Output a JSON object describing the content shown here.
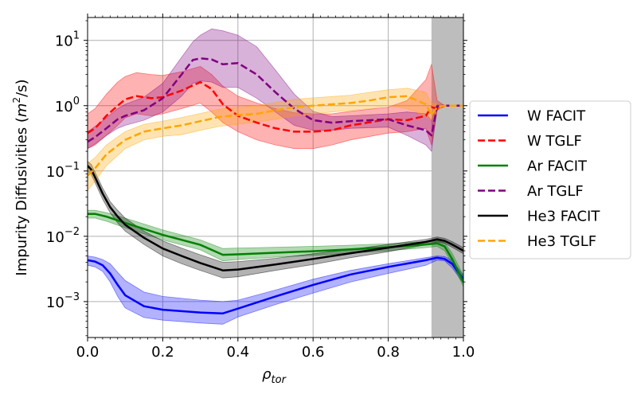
{
  "chart_data": {
    "type": "line",
    "title": "",
    "xlabel_base": "ρ",
    "xlabel_sub": "tor",
    "ylabel_text": "Impurity Diffusivities (",
    "ylabel_unit_m": "m",
    "ylabel_unit_exp": "2",
    "ylabel_unit_rest": "/s)",
    "xlim": [
      0.0,
      1.0
    ],
    "ylim_log10": [
      -3.55,
      1.35
    ],
    "x_ticks": [
      {
        "value": 0.0,
        "label": "0.0"
      },
      {
        "value": 0.2,
        "label": "0.2"
      },
      {
        "value": 0.4,
        "label": "0.4"
      },
      {
        "value": 0.6,
        "label": "0.6"
      },
      {
        "value": 0.8,
        "label": "0.8"
      },
      {
        "value": 1.0,
        "label": "1.0"
      }
    ],
    "y_ticks": [
      {
        "value": 0.001,
        "base": "10",
        "exp": "−3"
      },
      {
        "value": 0.01,
        "base": "10",
        "exp": "−2"
      },
      {
        "value": 0.1,
        "base": "10",
        "exp": "−1"
      },
      {
        "value": 1,
        "base": "10",
        "exp": "0"
      },
      {
        "value": 10,
        "base": "10",
        "exp": "1"
      }
    ],
    "grid": true,
    "shaded_region": {
      "x_start": 0.915,
      "x_end": 1.0,
      "color": "#bdbdbd"
    },
    "legend_position": "outside-right",
    "series": [
      {
        "name": "W FACIT",
        "color": "#0000ff",
        "dash": "solid",
        "band_opacity": 0.3,
        "x": [
          0.0,
          0.02,
          0.04,
          0.06,
          0.08,
          0.1,
          0.15,
          0.2,
          0.3,
          0.36,
          0.4,
          0.5,
          0.6,
          0.7,
          0.8,
          0.9,
          0.93,
          0.95,
          0.97,
          1.0
        ],
        "y": [
          0.0043,
          0.0041,
          0.0036,
          0.0027,
          0.0018,
          0.00125,
          0.00085,
          0.00075,
          0.00068,
          0.00066,
          0.00078,
          0.0012,
          0.0018,
          0.0026,
          0.0034,
          0.0043,
          0.0047,
          0.0045,
          0.0038,
          0.0022
        ],
        "lower": [
          0.0036,
          0.0034,
          0.0029,
          0.002,
          0.0012,
          0.0008,
          0.00057,
          0.00052,
          0.00047,
          0.00045,
          0.00058,
          0.0009,
          0.00135,
          0.002,
          0.0027,
          0.0036,
          0.0043,
          0.0042,
          0.0033,
          0.0019
        ],
        "upper": [
          0.005,
          0.0048,
          0.0044,
          0.0038,
          0.0028,
          0.0021,
          0.0014,
          0.0012,
          0.00105,
          0.001,
          0.00105,
          0.0015,
          0.0022,
          0.003,
          0.0038,
          0.0047,
          0.005,
          0.0049,
          0.0043,
          0.0025
        ]
      },
      {
        "name": "W TGLF",
        "color": "#ff0000",
        "dash": "dashed",
        "band_opacity": 0.3,
        "x": [
          0.0,
          0.02,
          0.05,
          0.08,
          0.1,
          0.13,
          0.17,
          0.2,
          0.25,
          0.3,
          0.33,
          0.36,
          0.4,
          0.45,
          0.5,
          0.55,
          0.6,
          0.65,
          0.7,
          0.8,
          0.85,
          0.9,
          0.915,
          0.93,
          0.95,
          1.0
        ],
        "y": [
          0.38,
          0.45,
          0.7,
          1.0,
          1.25,
          1.4,
          1.3,
          1.35,
          1.7,
          2.3,
          1.8,
          1.05,
          0.7,
          0.55,
          0.45,
          0.4,
          0.4,
          0.42,
          0.5,
          0.62,
          0.6,
          0.7,
          0.95,
          0.9,
          1.0,
          1.0
        ],
        "lower": [
          0.22,
          0.25,
          0.35,
          0.5,
          0.65,
          0.75,
          0.7,
          0.75,
          0.9,
          1.1,
          0.8,
          0.55,
          0.4,
          0.3,
          0.25,
          0.22,
          0.22,
          0.25,
          0.3,
          0.38,
          0.4,
          0.45,
          0.25,
          0.85,
          1.0,
          1.0
        ],
        "upper": [
          0.75,
          0.9,
          1.5,
          2.3,
          2.8,
          3.2,
          3.0,
          2.9,
          3.3,
          4.0,
          3.0,
          2.0,
          1.4,
          1.1,
          0.9,
          0.78,
          0.75,
          0.75,
          0.82,
          0.95,
          1.2,
          2.5,
          4.3,
          1.2,
          1.0,
          1.0
        ]
      },
      {
        "name": "Ar FACIT",
        "color": "#008000",
        "dash": "solid",
        "band_opacity": 0.3,
        "x": [
          0.0,
          0.02,
          0.05,
          0.1,
          0.2,
          0.3,
          0.36,
          0.4,
          0.5,
          0.6,
          0.7,
          0.8,
          0.9,
          0.93,
          0.95,
          0.97,
          1.0
        ],
        "y": [
          0.022,
          0.022,
          0.02,
          0.016,
          0.0105,
          0.0074,
          0.0052,
          0.0053,
          0.0056,
          0.0059,
          0.0063,
          0.0068,
          0.0075,
          0.0078,
          0.007,
          0.0045,
          0.002
        ],
        "lower": [
          0.019,
          0.019,
          0.017,
          0.0135,
          0.0088,
          0.0062,
          0.0042,
          0.0044,
          0.0048,
          0.0051,
          0.0055,
          0.006,
          0.0067,
          0.007,
          0.006,
          0.0038,
          0.0017
        ],
        "upper": [
          0.025,
          0.025,
          0.023,
          0.019,
          0.0125,
          0.0088,
          0.0065,
          0.0066,
          0.0068,
          0.007,
          0.0073,
          0.0077,
          0.0083,
          0.0086,
          0.008,
          0.0055,
          0.0025
        ]
      },
      {
        "name": "Ar TGLF",
        "color": "#800080",
        "dash": "dashed",
        "band_opacity": 0.3,
        "x": [
          0.0,
          0.02,
          0.05,
          0.08,
          0.1,
          0.15,
          0.2,
          0.25,
          0.28,
          0.3,
          0.33,
          0.36,
          0.4,
          0.45,
          0.5,
          0.55,
          0.6,
          0.65,
          0.7,
          0.8,
          0.85,
          0.9,
          0.915,
          0.93,
          0.95,
          1.0
        ],
        "y": [
          0.28,
          0.33,
          0.45,
          0.62,
          0.7,
          0.85,
          1.3,
          3.0,
          5.0,
          5.3,
          5.1,
          4.3,
          4.5,
          3.0,
          1.6,
          0.9,
          0.6,
          0.55,
          0.58,
          0.62,
          0.5,
          0.42,
          0.35,
          0.98,
          1.0,
          1.0
        ],
        "lower": [
          0.22,
          0.26,
          0.35,
          0.45,
          0.5,
          0.6,
          0.8,
          1.4,
          2.2,
          2.4,
          2.3,
          1.9,
          1.9,
          1.3,
          0.8,
          0.5,
          0.42,
          0.42,
          0.45,
          0.47,
          0.35,
          0.25,
          0.2,
          0.9,
          1.0,
          1.0
        ],
        "upper": [
          0.4,
          0.48,
          0.65,
          0.9,
          1.05,
          1.35,
          2.2,
          5.5,
          9.5,
          12.0,
          15.0,
          14.0,
          12.0,
          8.0,
          3.5,
          1.5,
          0.82,
          0.68,
          0.7,
          0.75,
          0.8,
          0.75,
          0.6,
          1.05,
          1.0,
          1.0
        ]
      },
      {
        "name": "He3 FACIT",
        "color": "#000000",
        "dash": "solid",
        "band_opacity": 0.3,
        "x": [
          0.0,
          0.01,
          0.02,
          0.04,
          0.06,
          0.08,
          0.1,
          0.15,
          0.2,
          0.25,
          0.3,
          0.36,
          0.4,
          0.5,
          0.6,
          0.7,
          0.8,
          0.9,
          0.93,
          0.95,
          0.97,
          1.0
        ],
        "y": [
          0.12,
          0.105,
          0.08,
          0.045,
          0.028,
          0.02,
          0.015,
          0.0095,
          0.0065,
          0.005,
          0.0039,
          0.003,
          0.0031,
          0.0037,
          0.0045,
          0.0055,
          0.0067,
          0.0082,
          0.009,
          0.0085,
          0.0075,
          0.006
        ],
        "lower": [
          0.1,
          0.088,
          0.066,
          0.037,
          0.023,
          0.016,
          0.012,
          0.0075,
          0.005,
          0.0038,
          0.003,
          0.0023,
          0.0024,
          0.003,
          0.0037,
          0.0047,
          0.0058,
          0.0074,
          0.0082,
          0.0078,
          0.0068,
          0.0054
        ],
        "upper": [
          0.14,
          0.125,
          0.096,
          0.055,
          0.034,
          0.025,
          0.019,
          0.012,
          0.0085,
          0.0066,
          0.0052,
          0.004,
          0.0041,
          0.0046,
          0.0054,
          0.0063,
          0.0075,
          0.009,
          0.0098,
          0.0093,
          0.0083,
          0.0067
        ]
      },
      {
        "name": "He3 TGLF",
        "color": "#ffa500",
        "dash": "dashed",
        "band_opacity": 0.3,
        "x": [
          0.0,
          0.02,
          0.05,
          0.1,
          0.15,
          0.2,
          0.25,
          0.3,
          0.35,
          0.4,
          0.45,
          0.5,
          0.55,
          0.6,
          0.65,
          0.7,
          0.75,
          0.8,
          0.85,
          0.9,
          0.915,
          0.93,
          0.95,
          1.0
        ],
        "y": [
          0.085,
          0.11,
          0.18,
          0.3,
          0.4,
          0.45,
          0.5,
          0.58,
          0.67,
          0.72,
          0.75,
          0.85,
          0.95,
          1.0,
          1.05,
          1.1,
          1.2,
          1.35,
          1.4,
          1.05,
          0.72,
          0.95,
          1.0,
          1.0
        ],
        "lower": [
          0.05,
          0.07,
          0.12,
          0.22,
          0.3,
          0.34,
          0.36,
          0.42,
          0.48,
          0.52,
          0.56,
          0.62,
          0.7,
          0.75,
          0.8,
          0.85,
          0.9,
          1.0,
          0.9,
          0.7,
          0.6,
          0.85,
          1.0,
          1.0
        ],
        "upper": [
          0.13,
          0.16,
          0.25,
          0.4,
          0.52,
          0.58,
          0.66,
          0.76,
          0.88,
          0.95,
          1.0,
          1.12,
          1.25,
          1.32,
          1.38,
          1.45,
          1.6,
          1.75,
          1.85,
          1.6,
          1.1,
          1.05,
          1.0,
          1.0
        ]
      }
    ]
  }
}
